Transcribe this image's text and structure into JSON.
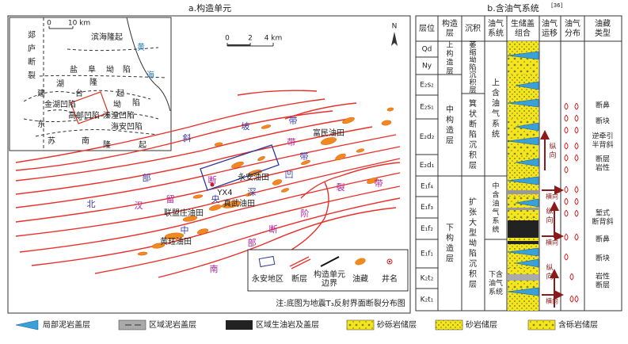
{
  "panel_a": {
    "title": "a.构造单元",
    "inset_labels": [
      "郯庐断裂",
      "滨海隆起",
      "盐阜坳陷",
      "黄海",
      "建湖隆起",
      "金湖凹陷",
      "高邮凹陷",
      "溱潼凹陷",
      "海安凹陷",
      "东台坳陷",
      "苏南隆起"
    ],
    "inset_scale": [
      "0",
      "10 km"
    ],
    "scale": [
      "0",
      "2",
      "4 km"
    ],
    "north": "N",
    "region_labels": [
      "北部斜坡带",
      "汉留断裂带",
      "中央深凹带",
      "南部断阶带"
    ],
    "fields": [
      "富民油田",
      "永安油田",
      "YX4",
      "联盟庄油田",
      "真武油田",
      "黄珏油田"
    ],
    "legend": [
      "永安地区",
      "断层",
      "构造单元边界",
      "油藏",
      "井名"
    ],
    "note": "注:底图为地震T₃反射界面断裂分布图"
  },
  "panel_b": {
    "title": "b.含油气系统",
    "ref": "[36]",
    "headers": [
      "层位",
      "构造层",
      "沉积",
      "油气系统",
      "生储盖组合",
      "油气运移",
      "油气分布",
      "油藏类型"
    ],
    "strata": [
      "Qd",
      "Ny",
      "E₂s₂",
      "E₂s₁",
      "E₂d₂",
      "E₂d₁",
      "E₁f₄",
      "E₁f₃",
      "E₁f₂",
      "E₁f₁",
      "K₂t₂",
      "K₂t₁"
    ],
    "structural_layers": [
      "上构造层",
      "中构造层",
      "下构造层"
    ],
    "sedimentation": [
      "萎缩坳陷沉积层",
      "箕状断陷沉积层",
      "扩张大型坳陷沉积层"
    ],
    "petroleum_systems": [
      "上含油气系统",
      "中含油气系统",
      "下含油气系统"
    ],
    "migration": [
      "纵向",
      "横向",
      "纵向",
      "横向",
      "纵向",
      "横向"
    ],
    "reservoir_types": [
      "断鼻",
      "断块",
      "逆牵引半背斜",
      "断层岩性",
      "堑式断背斜",
      "断鼻",
      "断块",
      "岩性断层"
    ]
  },
  "legend": [
    "局部泥岩盖层",
    "区域泥岩盖层",
    "区域生油岩及盖层",
    "砂砾岩储层",
    "砂岩储层",
    "含砾岩储层"
  ]
}
